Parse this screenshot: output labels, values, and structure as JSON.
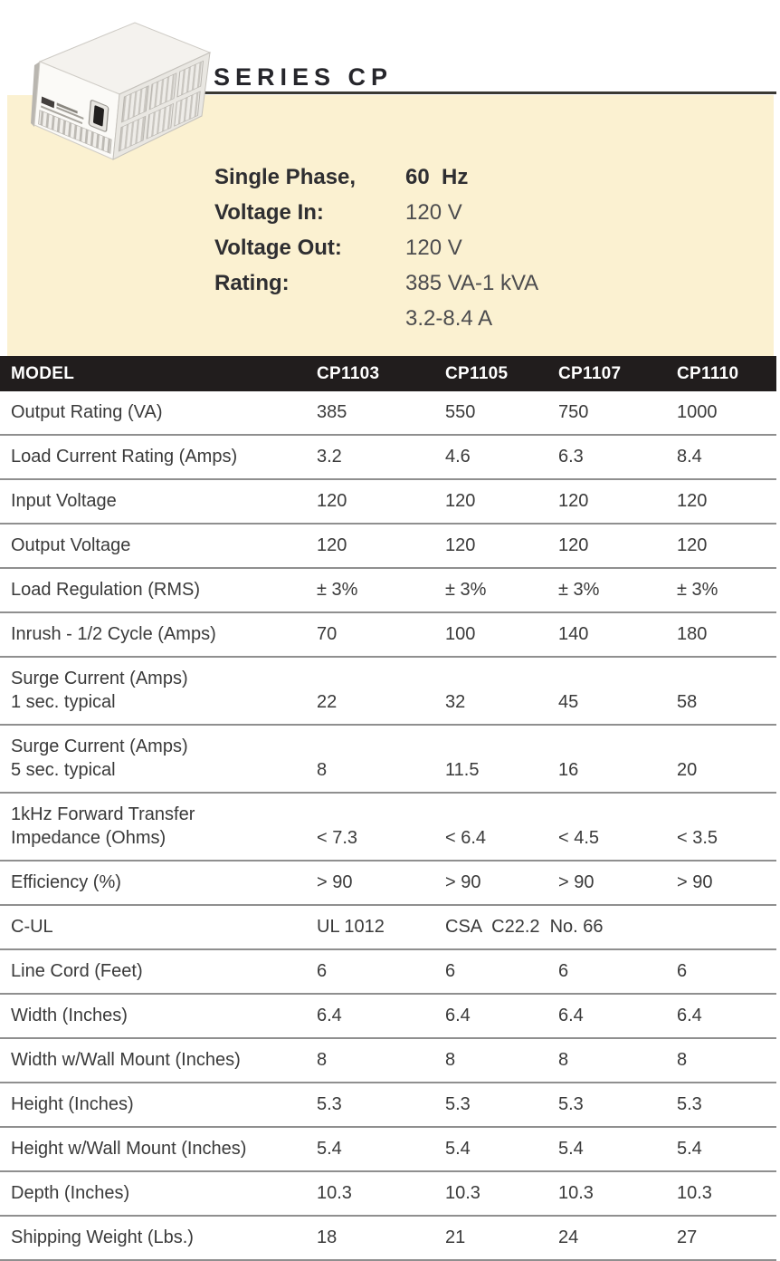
{
  "colors": {
    "panel": "#FBF1D1",
    "header_bar": "#211D1D",
    "divider": "#8F8F8F",
    "title_text": "#26262B",
    "body_text": "#3A3A3A"
  },
  "header": {
    "title": "SERIES CP",
    "product_image": "isometric-white-power-conditioner-with-vent-grilles",
    "specs": [
      {
        "label": "Single Phase,",
        "value": "60  Hz"
      },
      {
        "label": "Voltage In:",
        "value": "120 V"
      },
      {
        "label": "Voltage Out:",
        "value": "120 V"
      },
      {
        "label": "Rating:",
        "value": "385 VA-1 kVA"
      },
      {
        "label": "",
        "value": "3.2-8.4 A"
      }
    ]
  },
  "table": {
    "header": {
      "model_label": "MODEL",
      "columns": [
        "CP1103",
        "CP1105",
        "CP1107",
        "CP1110"
      ]
    },
    "rows": [
      {
        "label": "Output Rating (VA)",
        "values": [
          "385",
          "550",
          "750",
          "1000"
        ]
      },
      {
        "label": "Load Current Rating (Amps)",
        "values": [
          "3.2",
          "4.6",
          "6.3",
          "8.4"
        ]
      },
      {
        "label": "Input Voltage",
        "values": [
          "120",
          "120",
          "120",
          "120"
        ]
      },
      {
        "label": "Output Voltage",
        "values": [
          "120",
          "120",
          "120",
          "120"
        ]
      },
      {
        "label": "Load Regulation (RMS)",
        "values": [
          "± 3%",
          "± 3%",
          "± 3%",
          "± 3%"
        ]
      },
      {
        "label": "Inrush - 1/2 Cycle (Amps)",
        "values": [
          "70",
          "100",
          "140",
          "180"
        ]
      },
      {
        "label": "Surge Current (Amps)\n1 sec. typical",
        "values": [
          "22",
          "32",
          "45",
          "58"
        ]
      },
      {
        "label": "Surge Current (Amps)\n5 sec. typical",
        "values": [
          "8",
          "11.5",
          "16",
          "20"
        ]
      },
      {
        "label": "1kHz Forward Transfer\nImpedance (Ohms)",
        "values": [
          "< 7.3",
          "< 6.4",
          "< 4.5",
          "< 3.5"
        ]
      },
      {
        "label": "Efficiency (%)",
        "values": [
          "> 90",
          "> 90",
          "> 90",
          "> 90"
        ]
      },
      {
        "label": "C-UL",
        "values": [
          "UL 1012"
        ],
        "span_value": "CSA  C22.2  No. 66"
      },
      {
        "label": "Line Cord (Feet)",
        "values": [
          "6",
          "6",
          "6",
          "6"
        ]
      },
      {
        "label": "Width (Inches)",
        "values": [
          "6.4",
          "6.4",
          "6.4",
          "6.4"
        ]
      },
      {
        "label": "Width w/Wall Mount (Inches)",
        "values": [
          "8",
          "8",
          "8",
          "8"
        ]
      },
      {
        "label": "Height (Inches)",
        "values": [
          "5.3",
          "5.3",
          "5.3",
          "5.3"
        ]
      },
      {
        "label": "Height w/Wall Mount (Inches)",
        "values": [
          "5.4",
          "5.4",
          "5.4",
          "5.4"
        ]
      },
      {
        "label": "Depth (Inches)",
        "values": [
          "10.3",
          "10.3",
          "10.3",
          "10.3"
        ]
      },
      {
        "label": "Shipping Weight (Lbs.)",
        "values": [
          "18",
          "21",
          "24",
          "27"
        ]
      }
    ]
  }
}
